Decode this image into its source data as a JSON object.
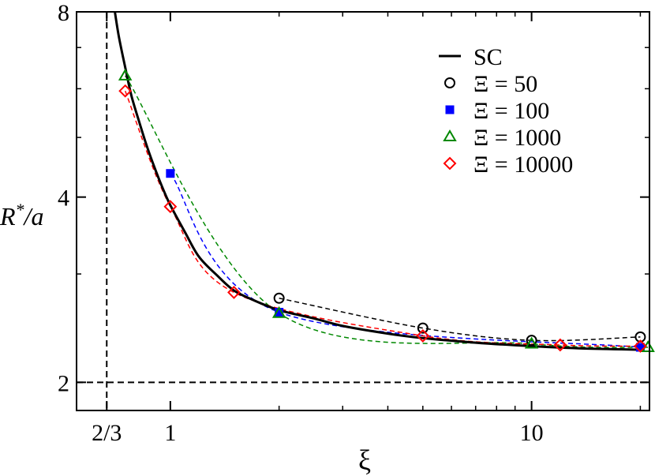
{
  "chart_data": {
    "type": "scatter",
    "x_scale": "log",
    "y_scale": "log",
    "xlim": [
      0.55,
      21.2
    ],
    "ylim": [
      1.8,
      8
    ],
    "xlabel": "ξ",
    "ylabel_main": "R",
    "ylabel_sup": "*",
    "ylabel_tail": "/a",
    "x_ticks": [
      {
        "value": 0.6667,
        "label": "2/3"
      },
      {
        "value": 1,
        "label": "1"
      },
      {
        "value": 10,
        "label": "10"
      }
    ],
    "y_ticks": [
      {
        "value": 2,
        "label": "2"
      },
      {
        "value": 4,
        "label": "4"
      },
      {
        "value": 8,
        "label": "8"
      }
    ],
    "minor_x_ticks": [
      2,
      3,
      4,
      5,
      6,
      7,
      8,
      9,
      20
    ],
    "minor_y_ticks": [
      3,
      5,
      6,
      7
    ],
    "reference_lines": [
      {
        "orientation": "vertical",
        "value": 0.6667
      },
      {
        "orientation": "horizontal",
        "value": 2
      }
    ],
    "legend_position": "top-right",
    "sc_curve": {
      "name": "SC",
      "color": "#000000",
      "x": [
        0.7,
        0.72,
        0.75,
        0.78,
        0.82,
        0.86,
        0.9,
        0.95,
        1.0,
        1.1,
        1.2,
        1.35,
        1.5,
        1.7,
        2.0,
        2.5,
        3.0,
        4.0,
        5.0,
        7.0,
        10.0,
        14.0,
        20.0
      ],
      "y": [
        8.1,
        7.3,
        6.5,
        5.85,
        5.3,
        4.85,
        4.5,
        4.15,
        3.88,
        3.5,
        3.2,
        2.98,
        2.82,
        2.72,
        2.62,
        2.54,
        2.47,
        2.4,
        2.36,
        2.32,
        2.29,
        2.27,
        2.26
      ]
    },
    "series": [
      {
        "name": "50",
        "symbol": "circle",
        "color": "#000000",
        "x": [
          2.0,
          5.0,
          10.0,
          20.0
        ],
        "y": [
          2.74,
          2.45,
          2.34,
          2.37
        ]
      },
      {
        "name": "100",
        "symbol": "square",
        "color": "#0000ff",
        "x": [
          1.0,
          2.0,
          20.0
        ],
        "y": [
          4.37,
          2.6,
          2.28
        ]
      },
      {
        "name": "1000",
        "symbol": "triangle",
        "color": "#008800",
        "x": [
          0.75,
          2.0,
          10.0,
          21.0
        ],
        "y": [
          6.3,
          2.59,
          2.31,
          2.28
        ]
      },
      {
        "name": "10000",
        "symbol": "diamond",
        "color": "#ff0000",
        "x": [
          0.75,
          1.0,
          1.5,
          5.0,
          12.0,
          20.0
        ],
        "y": [
          5.95,
          3.86,
          2.8,
          2.38,
          2.3,
          2.29
        ]
      }
    ],
    "legend_prefix": "Ξ",
    "legend_equals": "="
  }
}
